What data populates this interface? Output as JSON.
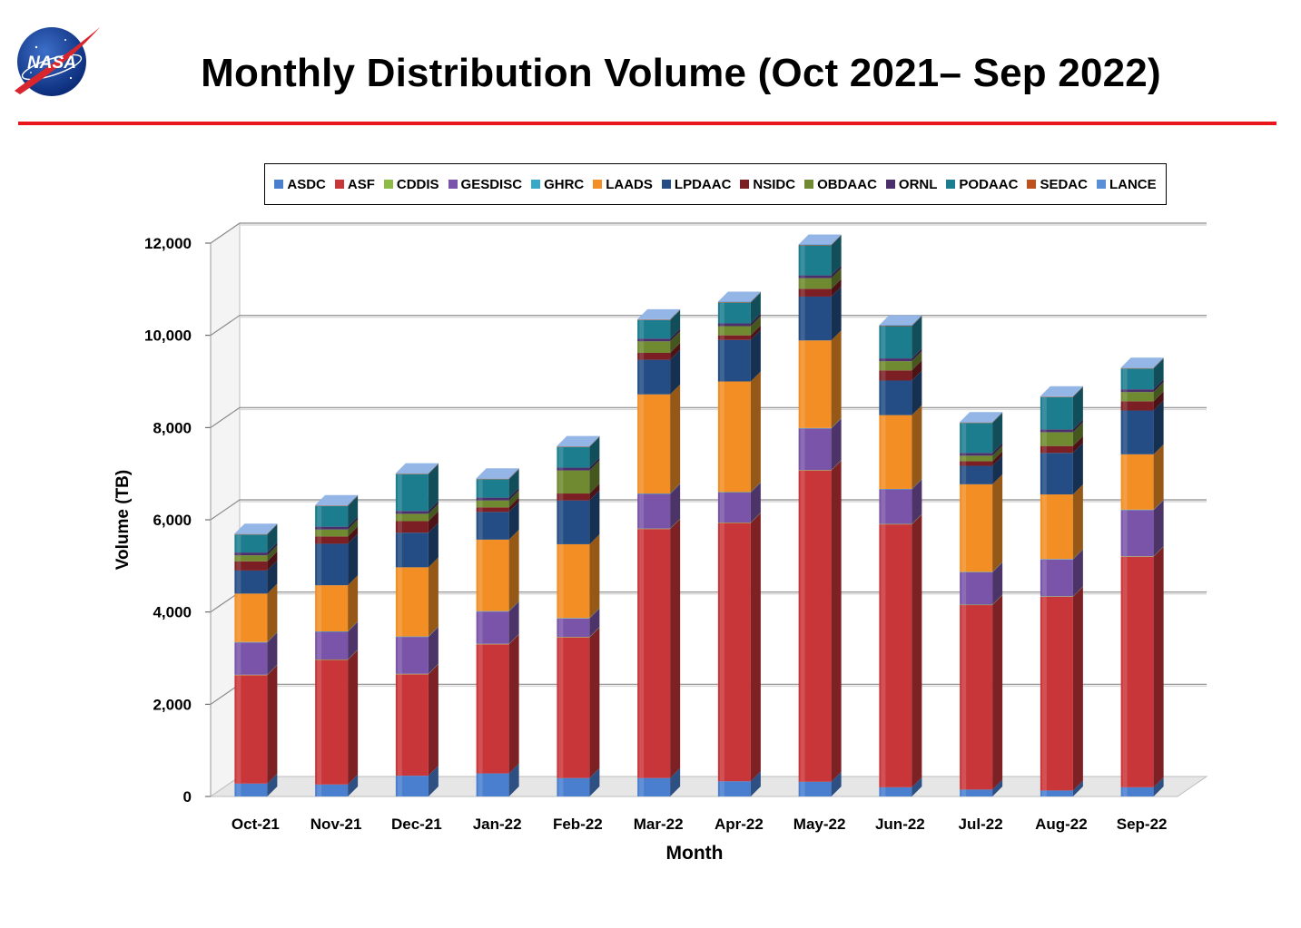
{
  "title": "Monthly Distribution Volume (Oct 2021– Sep 2022)",
  "logo": {
    "icon": "nasa-meatball-logo",
    "text": "NASA"
  },
  "accent_color": "#e8151b",
  "chart_data": {
    "type": "bar",
    "stacked": true,
    "style": "3d",
    "xlabel": "Month",
    "ylabel": "Volume (TB)",
    "ylim": [
      0,
      12000
    ],
    "yticks": [
      0,
      2000,
      4000,
      6000,
      8000,
      10000,
      12000
    ],
    "ytick_labels": [
      "0",
      "2,000",
      "4,000",
      "6,000",
      "8,000",
      "10,000",
      "12,000"
    ],
    "grid": true,
    "legend_position": "top",
    "categories": [
      "Oct-21",
      "Nov-21",
      "Dec-21",
      "Jan-22",
      "Feb-22",
      "Mar-22",
      "Apr-22",
      "May-22",
      "Jun-22",
      "Jul-22",
      "Aug-22",
      "Sep-22"
    ],
    "series": [
      {
        "name": "ASDC",
        "color": "#4a7fd0",
        "values": [
          280,
          260,
          450,
          500,
          400,
          400,
          330,
          320,
          200,
          150,
          130,
          200
        ]
      },
      {
        "name": "ASF",
        "color": "#c9363a",
        "values": [
          2350,
          2700,
          2200,
          2800,
          3050,
          5400,
          5600,
          6750,
          5700,
          4000,
          4200,
          5000
        ]
      },
      {
        "name": "CDDIS",
        "color": "#8dbb45",
        "values": [
          10,
          10,
          10,
          10,
          10,
          10,
          10,
          10,
          10,
          10,
          10,
          10
        ]
      },
      {
        "name": "GESDISC",
        "color": "#7a54a8",
        "values": [
          700,
          600,
          800,
          700,
          400,
          750,
          650,
          900,
          750,
          700,
          800,
          1000
        ]
      },
      {
        "name": "GHRC",
        "color": "#38a8c8",
        "values": [
          10,
          10,
          10,
          10,
          10,
          10,
          10,
          10,
          10,
          10,
          10,
          10
        ]
      },
      {
        "name": "LAADS",
        "color": "#f28e24",
        "values": [
          1050,
          1000,
          1500,
          1550,
          1600,
          2150,
          2400,
          1900,
          1600,
          1900,
          1400,
          1200
        ]
      },
      {
        "name": "LPDAAC",
        "color": "#234d84",
        "values": [
          500,
          900,
          750,
          600,
          950,
          750,
          900,
          950,
          750,
          400,
          900,
          950
        ]
      },
      {
        "name": "NSIDC",
        "color": "#7b1f24",
        "values": [
          200,
          160,
          250,
          100,
          150,
          150,
          100,
          170,
          220,
          100,
          150,
          200
        ]
      },
      {
        "name": "OBDAAC",
        "color": "#6f8a30",
        "values": [
          130,
          150,
          160,
          150,
          500,
          250,
          200,
          230,
          200,
          120,
          300,
          200
        ]
      },
      {
        "name": "ORNL",
        "color": "#4a2f6c",
        "values": [
          60,
          60,
          60,
          60,
          60,
          60,
          60,
          60,
          60,
          60,
          60,
          60
        ]
      },
      {
        "name": "PODAAC",
        "color": "#1c7d8f",
        "values": [
          390,
          450,
          800,
          400,
          450,
          400,
          450,
          650,
          700,
          650,
          700,
          450
        ]
      },
      {
        "name": "SEDAC",
        "color": "#c0501a",
        "values": [
          10,
          10,
          10,
          10,
          10,
          10,
          10,
          10,
          10,
          10,
          10,
          10
        ]
      },
      {
        "name": "LANCE",
        "color": "#5a8fd8",
        "values": [
          10,
          10,
          10,
          10,
          10,
          10,
          10,
          10,
          10,
          10,
          10,
          10
        ]
      }
    ]
  }
}
